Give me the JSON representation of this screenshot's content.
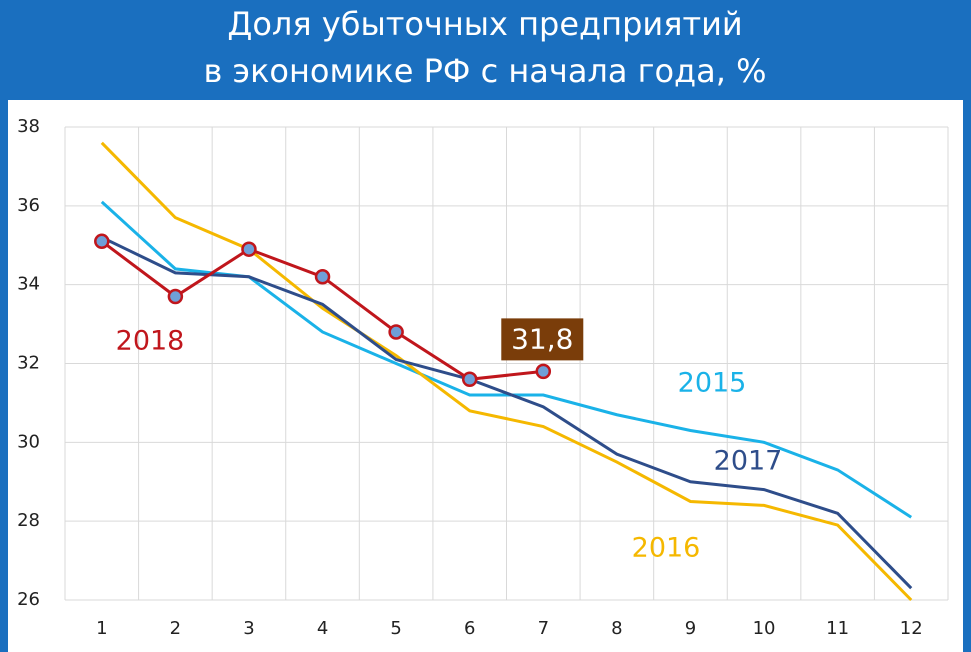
{
  "chart_data": {
    "type": "line",
    "title": [
      "Доля убыточных предприятий",
      "в экономике РФ с начала года, %"
    ],
    "categories": [
      "1",
      "2",
      "3",
      "4",
      "5",
      "6",
      "7",
      "8",
      "9",
      "10",
      "11",
      "12"
    ],
    "ylim": [
      26,
      38
    ],
    "yticks": [
      26,
      28,
      30,
      32,
      34,
      36,
      38
    ],
    "grid": true,
    "series": [
      {
        "name": "2015",
        "color": "#1ab2e8",
        "values": [
          36.1,
          34.4,
          34.2,
          32.8,
          32.0,
          31.2,
          31.2,
          30.7,
          30.3,
          30.0,
          29.3,
          28.1
        ]
      },
      {
        "name": "2016",
        "color": "#f5b800",
        "values": [
          37.6,
          35.7,
          34.9,
          33.4,
          32.2,
          30.8,
          30.4,
          29.5,
          28.5,
          28.4,
          27.9,
          26.0
        ]
      },
      {
        "name": "2017",
        "color": "#2e4d8a",
        "values": [
          35.2,
          34.3,
          34.2,
          33.5,
          32.1,
          31.6,
          30.9,
          29.7,
          29.0,
          28.8,
          28.2,
          26.3
        ]
      },
      {
        "name": "2018",
        "color": "#c0161c",
        "values": [
          35.1,
          33.7,
          34.9,
          34.2,
          32.8,
          31.6,
          31.8,
          null,
          null,
          null,
          null,
          null
        ],
        "value_labels": {
          "6": "31,8"
        }
      }
    ]
  }
}
